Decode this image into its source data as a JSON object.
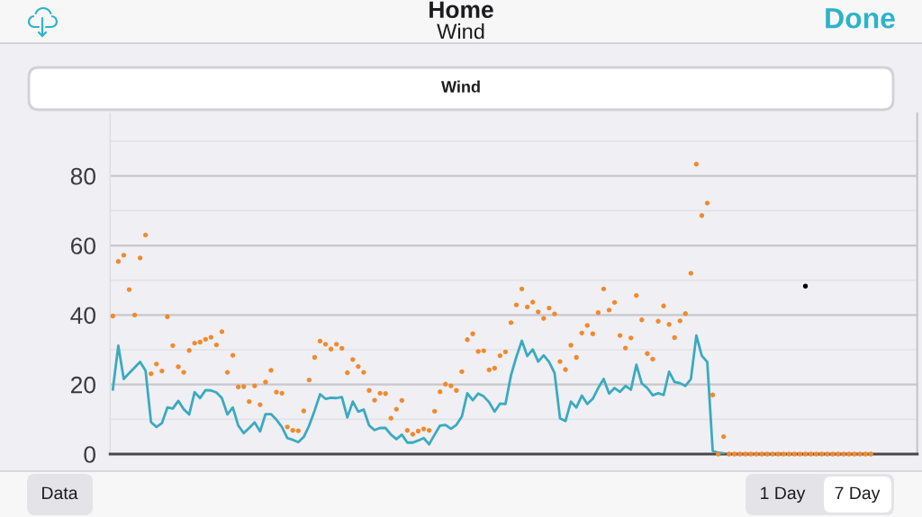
{
  "chart_data": {
    "type": "line",
    "title": "Home",
    "subtitle": "Wind",
    "annotations": [
      "Done",
      "Wind",
      "Data",
      "1 Day",
      "7 Day"
    ],
    "categories": [
      null,
      null,
      null,
      null,
      null,
      null,
      null,
      null,
      null,
      null,
      null,
      null,
      null,
      null,
      null,
      null,
      null,
      null,
      null,
      null,
      null,
      null,
      null,
      null,
      null,
      null,
      null,
      null,
      null,
      null,
      null,
      null,
      null,
      null,
      null,
      null,
      null,
      null,
      null,
      null,
      null,
      null,
      null,
      null,
      null,
      null,
      null,
      null,
      null,
      null,
      null,
      null,
      null,
      null,
      null,
      null,
      null,
      null,
      null,
      null,
      null,
      null,
      null,
      null,
      null,
      null,
      null,
      null,
      null,
      null,
      null,
      null,
      null,
      null,
      null,
      null,
      null,
      null,
      null,
      null,
      null,
      null,
      null,
      null,
      null,
      null,
      null,
      null,
      null,
      null,
      null,
      null,
      null,
      null,
      null,
      null,
      null,
      null,
      null,
      null,
      null,
      null,
      null,
      null,
      null,
      null,
      null,
      null,
      null,
      null,
      null,
      null,
      null,
      null,
      null,
      null,
      null,
      null,
      null,
      null,
      null,
      null,
      null,
      null,
      null,
      null,
      null,
      null,
      null,
      null,
      null,
      null,
      null,
      null,
      null,
      null,
      null,
      null,
      null,
      null,
      null,
      null,
      null,
      null,
      null,
      null,
      null,
      null
    ],
    "series": [
      {
        "color": "#3aaabf",
        "values": [
          18.6,
          31.2,
          21.6,
          23.3,
          24.9,
          26.5,
          24.0,
          9.2,
          7.8,
          8.9,
          13.4,
          13.1,
          15.3,
          12.9,
          11.4,
          17.8,
          16.1,
          18.4,
          18.3,
          17.7,
          16.1,
          11.4,
          13.4,
          8.2,
          6.0,
          7.5,
          9.1,
          6.5,
          11.5,
          11.5,
          9.9,
          7.8,
          4.6,
          4.1,
          3.4,
          4.9,
          8.2,
          12.5,
          17.2,
          15.9,
          16.2,
          16.1,
          16.4,
          10.5,
          15.1,
          12.2,
          12.8,
          8.2,
          6.9,
          7.5,
          7.5,
          5.6,
          4.3,
          5.6,
          3.3,
          3.3,
          3.9,
          4.6,
          2.8,
          5.6,
          8.2,
          8.4,
          7.3,
          8.4,
          10.8,
          17.5,
          15.5,
          17.4,
          16.6,
          14.9,
          12.2,
          14.5,
          14.4,
          22.6,
          28.0,
          32.6,
          28.2,
          30.1,
          26.6,
          28.4,
          26.5,
          23.3,
          10.3,
          9.5,
          15.1,
          13.4,
          16.8,
          14.4,
          15.9,
          19.0,
          21.6,
          17.4,
          19.0,
          17.9,
          19.6,
          18.5,
          25.7,
          20.3,
          19.0,
          16.9,
          17.5,
          17.0,
          23.7,
          20.7,
          20.4,
          19.6,
          21.6,
          34.1,
          28.3,
          26.5,
          0.9,
          0.4,
          0.2,
          null,
          null,
          null,
          null,
          null,
          null,
          null,
          null,
          null,
          null,
          null,
          null,
          null,
          null,
          null,
          null,
          null,
          null,
          null,
          null,
          null,
          null,
          null,
          null,
          null,
          null,
          null,
          null,
          null,
          null,
          null,
          null,
          null,
          null,
          null
        ]
      },
      {
        "type": "scatter",
        "marker": "circle",
        "color": "#f08a2c",
        "values": [
          39.7,
          55.4,
          57.2,
          47.3,
          40.0,
          56.4,
          63.0,
          23.1,
          25.9,
          23.9,
          39.5,
          31.2,
          25.1,
          23.5,
          29.8,
          31.9,
          32.2,
          33.0,
          33.6,
          31.4,
          35.2,
          23.5,
          28.4,
          19.3,
          19.4,
          15.1,
          19.6,
          14.2,
          20.7,
          24.1,
          17.8,
          17.5,
          7.8,
          6.8,
          6.7,
          12.4,
          21.3,
          27.8,
          32.5,
          31.6,
          30.2,
          31.6,
          30.4,
          23.4,
          27.2,
          25.2,
          23.5,
          18.3,
          15.5,
          17.5,
          17.4,
          10.3,
          12.9,
          15.4,
          6.8,
          5.7,
          6.6,
          7.2,
          6.8,
          12.3,
          17.9,
          20.1,
          19.6,
          18.3,
          23.7,
          32.9,
          34.6,
          29.5,
          29.7,
          24.2,
          24.7,
          28.3,
          29.4,
          37.8,
          42.9,
          47.5,
          42.3,
          43.7,
          40.9,
          39.0,
          42.0,
          40.3,
          26.6,
          24.3,
          31.3,
          27.8,
          34.8,
          37.0,
          34.6,
          40.7,
          47.5,
          41.4,
          43.6,
          34.1,
          30.5,
          33.4,
          45.6,
          38.6,
          28.9,
          27.3,
          38.2,
          42.6,
          37.3,
          33.5,
          38.3,
          40.4,
          52.0,
          83.4,
          68.6,
          72.2,
          17.0,
          0,
          5.0,
          0,
          0,
          0,
          0,
          0,
          0,
          0,
          0,
          0,
          0,
          0,
          0,
          0,
          0,
          0,
          0,
          0,
          0,
          0,
          0,
          0,
          0,
          0,
          0,
          0,
          0,
          0,
          null,
          null,
          null,
          null,
          null,
          null,
          null,
          null
        ]
      },
      {
        "type": "scatter",
        "marker": "circle",
        "color": "#000000",
        "values": [
          null,
          null,
          null,
          null,
          null,
          null,
          null,
          null,
          null,
          null,
          null,
          null,
          null,
          null,
          null,
          null,
          null,
          null,
          null,
          null,
          null,
          null,
          null,
          null,
          null,
          null,
          null,
          null,
          null,
          null,
          null,
          null,
          null,
          null,
          null,
          null,
          null,
          null,
          null,
          null,
          null,
          null,
          null,
          null,
          null,
          null,
          null,
          null,
          null,
          null,
          null,
          null,
          null,
          null,
          null,
          null,
          null,
          null,
          null,
          null,
          null,
          null,
          null,
          null,
          null,
          null,
          null,
          null,
          null,
          null,
          null,
          null,
          null,
          null,
          null,
          null,
          null,
          null,
          null,
          null,
          null,
          null,
          null,
          null,
          null,
          null,
          null,
          null,
          null,
          null,
          null,
          null,
          null,
          null,
          null,
          null,
          null,
          null,
          null,
          null,
          null,
          null,
          null,
          null,
          null,
          null,
          null,
          null,
          null,
          null,
          null,
          null,
          null,
          null,
          null,
          null,
          null,
          null,
          null,
          null,
          null,
          null,
          null,
          null,
          null,
          null,
          null,
          48.3,
          null,
          null,
          null,
          null,
          null,
          null,
          null,
          null,
          null,
          null,
          null,
          null,
          null,
          null,
          null,
          null,
          null,
          null,
          null,
          null
        ]
      }
    ],
    "ylim": [
      0,
      98
    ],
    "yticks": [
      0,
      {
        "value": 10,
        "label": null
      },
      20,
      {
        "value": 30,
        "label": null
      },
      40,
      {
        "value": 50,
        "label": null
      },
      60,
      {
        "value": 70,
        "label": null
      },
      80,
      {
        "value": 90,
        "label": null
      }
    ],
    "grid": "y",
    "tick_labels": "y"
  }
}
